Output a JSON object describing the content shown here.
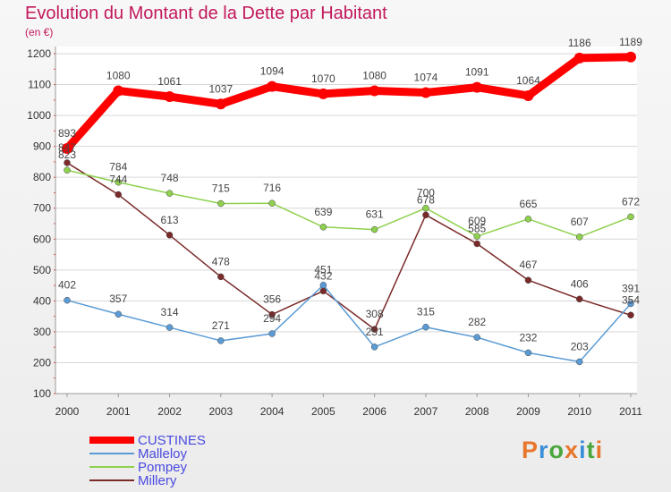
{
  "chart_data": {
    "type": "line",
    "title": "Evolution du Montant de la Dette par Habitant",
    "subtitle": "(en €)",
    "x": [
      "2000",
      "2001",
      "2002",
      "2003",
      "2004",
      "2005",
      "2006",
      "2007",
      "2008",
      "2009",
      "2010",
      "2011"
    ],
    "yticks": [
      100,
      200,
      300,
      400,
      500,
      600,
      700,
      800,
      900,
      1000,
      1100,
      1200
    ],
    "ylim": [
      100,
      1200
    ],
    "grid": "horizontal",
    "legend_position": "bottom-left",
    "series": [
      {
        "name": "CUSTINES",
        "color": "#ff0000",
        "values": [
          893,
          1080,
          1061,
          1037,
          1094,
          1070,
          1080,
          1074,
          1091,
          1064,
          1186,
          1189
        ]
      },
      {
        "name": "Malleloy",
        "color": "#5b9bd5",
        "values": [
          402,
          357,
          314,
          271,
          294,
          451,
          251,
          315,
          282,
          232,
          203,
          391
        ]
      },
      {
        "name": "Pompey",
        "color": "#8fd14f",
        "values": [
          823,
          784,
          748,
          715,
          716,
          639,
          631,
          700,
          609,
          665,
          607,
          672
        ]
      },
      {
        "name": "Millery",
        "color": "#7b2a2a",
        "values": [
          847,
          744,
          613,
          478,
          356,
          432,
          308,
          678,
          585,
          467,
          406,
          354
        ]
      }
    ]
  },
  "logo": {
    "text": "Proxiti",
    "colors": [
      "#e8762c",
      "#3b8ed8",
      "#4aa63c",
      "#e8762c",
      "#3b8ed8",
      "#4aa63c",
      "#e8762c"
    ]
  }
}
